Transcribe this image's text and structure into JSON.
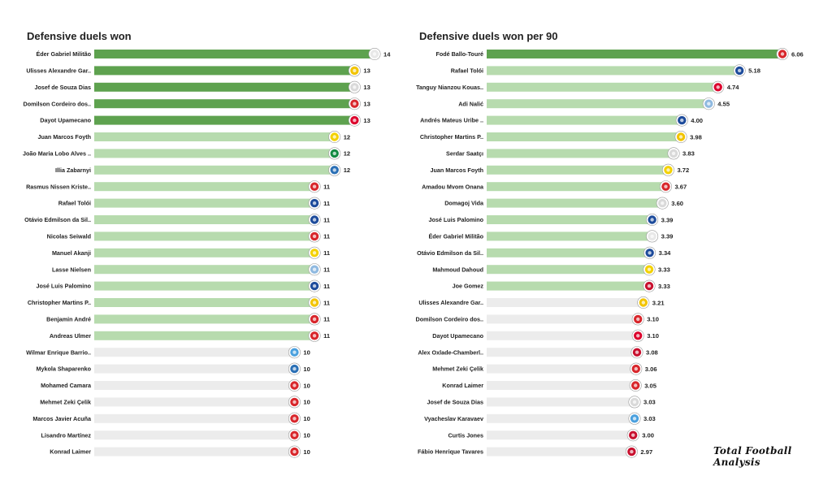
{
  "colors": {
    "dark": "#5ea24f",
    "mid": "#b7dbae",
    "light": "#ececec"
  },
  "watermark": "Total Football Analysis",
  "chart_data": [
    {
      "type": "bar",
      "orientation": "horizontal",
      "title": "Defensive duels won",
      "xlim": [
        0,
        14
      ],
      "categories": [
        "Éder Gabriel Militão",
        "Ulisses Alexandre Gar..",
        "Josef de Souza Dias",
        "Domilson Cordeiro dos..",
        "Dayot Upamecano",
        "Juan Marcos Foyth",
        "João Maria Lobo Alves ..",
        "Illia Zabarnyi",
        "Rasmus Nissen Kriste..",
        "Rafael Tolói",
        "Otávio Edmilson da Sil..",
        "Nicolas Seiwald",
        "Manuel Akanji",
        "Lasse Nielsen",
        "José Luis Palomino",
        "Christopher Martins P..",
        "Benjamin André",
        "Andreas Ulmer",
        "Wilmar Enrique Barrio..",
        "Mykola Shaparenko",
        "Mohamed Camara",
        "Mehmet Zeki Çelik",
        "Marcos Javier Acuña",
        "Lisandro Martínez",
        "Konrad Laimer"
      ],
      "values": [
        14,
        13,
        13,
        13,
        13,
        12,
        12,
        12,
        11,
        11,
        11,
        11,
        11,
        11,
        11,
        11,
        11,
        11,
        10,
        10,
        10,
        10,
        10,
        10,
        10
      ],
      "value_labels": [
        "14",
        "13",
        "13",
        "13",
        "13",
        "12",
        "12",
        "12",
        "11",
        "11",
        "11",
        "11",
        "11",
        "11",
        "11",
        "11",
        "11",
        "11",
        "10",
        "10",
        "10",
        "10",
        "10",
        "10",
        "10"
      ],
      "tiers": [
        "dark",
        "dark",
        "dark",
        "dark",
        "dark",
        "mid",
        "mid",
        "mid",
        "mid",
        "mid",
        "mid",
        "mid",
        "mid",
        "mid",
        "mid",
        "mid",
        "mid",
        "mid",
        "light",
        "light",
        "light",
        "light",
        "light",
        "light",
        "light"
      ],
      "badge_colors": [
        "#e8e8e8",
        "#f2c400",
        "#d9d9d9",
        "#d8262b",
        "#dc052d",
        "#f3d100",
        "#138a43",
        "#2a6fb5",
        "#d8262b",
        "#1d4b9b",
        "#1d4b9b",
        "#d8262b",
        "#f3d100",
        "#8fb9e0",
        "#1d4b9b",
        "#f2c400",
        "#d8262b",
        "#d8262b",
        "#4aa0de",
        "#2a6fb5",
        "#d8262b",
        "#d8262b",
        "#d8262b",
        "#d8262b",
        "#d8262b"
      ]
    },
    {
      "type": "bar",
      "orientation": "horizontal",
      "title": "Defensive duels won per 90",
      "xlim": [
        0,
        6.06
      ],
      "categories": [
        "Fodé  Ballo-Touré",
        "Rafael Tolói",
        "Tanguy Nianzou Kouas..",
        "Adi Nalić",
        "Andrés Mateus Uribe ..",
        "Christopher Martins P..",
        "Serdar Saatçı",
        "Juan Marcos Foyth",
        "Amadou Mvom Onana",
        "Domagoj Vida",
        "José Luis Palomino",
        "Éder Gabriel Militão",
        "Otávio Edmilson da Sil..",
        "Mahmoud Dahoud",
        "Joe Gomez",
        "Ulisses Alexandre Gar..",
        "Domilson Cordeiro dos..",
        "Dayot Upamecano",
        "Alex Oxlade-Chamberl..",
        "Mehmet Zeki Çelik",
        "Konrad Laimer",
        "Josef de Souza Dias",
        "Vyacheslav Karavaev",
        "Curtis Jones",
        "Fábio Henrique Tavares"
      ],
      "values": [
        6.06,
        5.18,
        4.74,
        4.55,
        4.0,
        3.98,
        3.83,
        3.72,
        3.67,
        3.6,
        3.39,
        3.39,
        3.34,
        3.33,
        3.33,
        3.21,
        3.1,
        3.1,
        3.08,
        3.06,
        3.05,
        3.03,
        3.03,
        3.0,
        2.97
      ],
      "value_labels": [
        "6.06",
        "5.18",
        "4.74",
        "4.55",
        "4.00",
        "3.98",
        "3.83",
        "3.72",
        "3.67",
        "3.60",
        "3.39",
        "3.39",
        "3.34",
        "3.33",
        "3.33",
        "3.21",
        "3.10",
        "3.10",
        "3.08",
        "3.06",
        "3.05",
        "3.03",
        "3.03",
        "3.00",
        "2.97"
      ],
      "tiers": [
        "dark",
        "mid",
        "mid",
        "mid",
        "mid",
        "mid",
        "mid",
        "mid",
        "mid",
        "mid",
        "mid",
        "mid",
        "mid",
        "mid",
        "mid",
        "light",
        "light",
        "light",
        "light",
        "light",
        "light",
        "light",
        "light",
        "light",
        "light"
      ],
      "badge_colors": [
        "#d8262b",
        "#1d4b9b",
        "#dc052d",
        "#8fb9e0",
        "#1d4b9b",
        "#f2c400",
        "#d9d9d9",
        "#f3d100",
        "#d8262b",
        "#d9d9d9",
        "#1d4b9b",
        "#e8e8e8",
        "#1d4b9b",
        "#f3d100",
        "#c8102e",
        "#f2c400",
        "#d8262b",
        "#dc052d",
        "#c8102e",
        "#d8262b",
        "#d8262b",
        "#d9d9d9",
        "#4aa0de",
        "#c8102e",
        "#c8102e"
      ]
    }
  ]
}
